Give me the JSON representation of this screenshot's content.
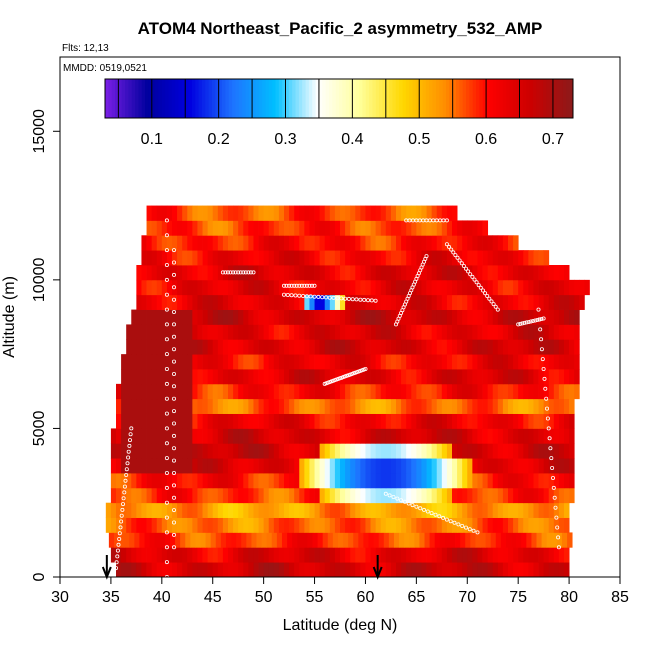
{
  "chart_data": {
    "type": "heatmap",
    "title": "ATOM4 Northeast_Pacific_2 asymmetry_532_AMP",
    "flights_label": "Flts: 12,13",
    "mmdd_label": "MMDD: 0519,0521",
    "xlabel": "Latitude (deg N)",
    "ylabel": "Altitude (m)",
    "xlim": [
      30,
      85
    ],
    "ylim": [
      0,
      17500
    ],
    "x_ticks": [
      30,
      35,
      40,
      45,
      50,
      55,
      60,
      65,
      70,
      75,
      80,
      85
    ],
    "y_ticks": [
      0,
      5000,
      10000,
      15000
    ],
    "colorbar": {
      "range": [
        0.03,
        0.73
      ],
      "ticks": [
        0.1,
        0.2,
        0.3,
        0.4,
        0.5,
        0.6,
        0.7
      ],
      "colors": [
        "#7b1fe6",
        "#00009e",
        "#0000e0",
        "#1e73ff",
        "#00bfff",
        "#ffffff",
        "#ffff99",
        "#ffd700",
        "#ff8c00",
        "#ff0000",
        "#cc0000",
        "#8b1a1a"
      ]
    },
    "grid": false,
    "profile_start_latitudes": [
      34.6,
      61.2
    ],
    "altitude_bins_m": [
      0,
      500,
      1000,
      1500,
      2000,
      2500,
      3000,
      3500,
      4000,
      4500,
      5000,
      5500,
      6000,
      6500,
      7000,
      7500,
      8000,
      8500,
      9000,
      9500,
      10000,
      10500,
      11000,
      11500,
      12000
    ],
    "latitude_extent_per_bin": [
      [
        35.5,
        80
      ],
      [
        35.0,
        80
      ],
      [
        34.8,
        80
      ],
      [
        34.5,
        80
      ],
      [
        34.5,
        80
      ],
      [
        35.0,
        80.5
      ],
      [
        35.0,
        80.5
      ],
      [
        35.0,
        80.5
      ],
      [
        35.0,
        80.5
      ],
      [
        35.0,
        80.5
      ],
      [
        35.5,
        80.5
      ],
      [
        35.5,
        80.5
      ],
      [
        35.5,
        81
      ],
      [
        36.0,
        81
      ],
      [
        36.0,
        81
      ],
      [
        36.5,
        81
      ],
      [
        36.5,
        81
      ],
      [
        37.0,
        81
      ],
      [
        37.5,
        81.5
      ],
      [
        37.5,
        82
      ],
      [
        37.5,
        80
      ],
      [
        38.0,
        78
      ],
      [
        38.0,
        75
      ],
      [
        38.5,
        72
      ],
      [
        38.5,
        69
      ]
    ],
    "row_base_values": [
      0.66,
      0.64,
      0.58,
      0.55,
      0.52,
      0.58,
      0.6,
      0.64,
      0.66,
      0.65,
      0.62,
      0.55,
      0.6,
      0.64,
      0.62,
      0.65,
      0.64,
      0.66,
      0.63,
      0.63,
      0.64,
      0.62,
      0.6,
      0.58,
      0.57
    ]
  }
}
